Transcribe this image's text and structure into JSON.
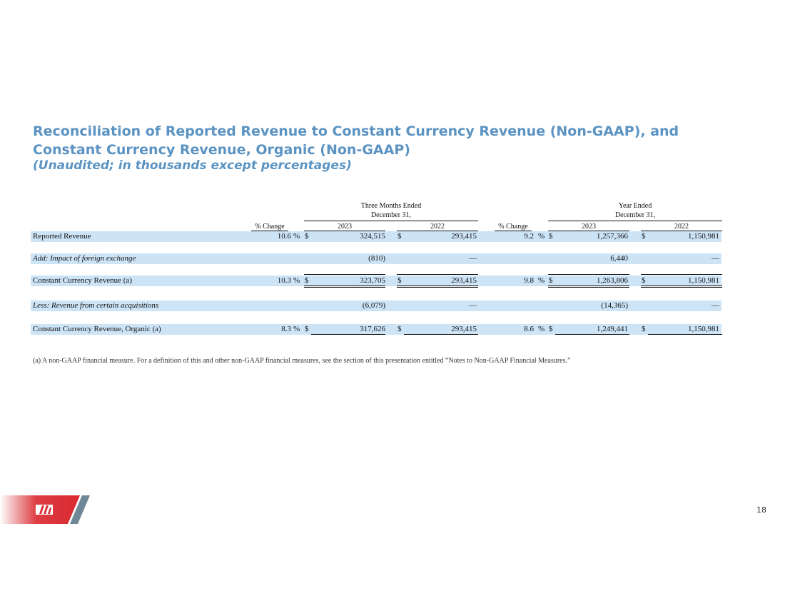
{
  "title": "Reconciliation of Reported Revenue to Constant Currency Revenue (Non-GAAP), and Constant Currency Revenue, Organic (Non-GAAP)",
  "subtitle": "(Unaudited; in thousands except percentages)",
  "headers": {
    "three_months_line1": "Three Months Ended",
    "three_months_line2": "December 31,",
    "year_line1": "Year Ended",
    "year_line2": "December 31,",
    "pct_change": "% Change",
    "y2023": "2023",
    "y2022": "2022"
  },
  "rows": [
    {
      "label": "Reported Revenue",
      "q_pct": "10.6",
      "q_pct_sym": "%",
      "q_dollar1": "$",
      "q_2023": "324,515",
      "q_dollar2": "$",
      "q_2022": "293,415",
      "y_pct": "9.2",
      "y_pct_sym": "%",
      "y_dollar1": "$",
      "y_2023": "1,257,366",
      "y_dollar2": "$",
      "y_2022": "1,150,981"
    },
    {
      "label": "Add: Impact of foreign exchange",
      "q_pct": "",
      "q_pct_sym": "",
      "q_dollar1": "",
      "q_2023": "(810)",
      "q_dollar2": "",
      "q_2022": "—",
      "y_pct": "",
      "y_pct_sym": "",
      "y_dollar1": "",
      "y_2023": "6,440",
      "y_dollar2": "",
      "y_2022": "—"
    },
    {
      "label": "Constant Currency Revenue (a)",
      "q_pct": "10.3",
      "q_pct_sym": "%",
      "q_dollar1": "$",
      "q_2023": "323,705",
      "q_dollar2": "$",
      "q_2022": "293,415",
      "y_pct": "9.8",
      "y_pct_sym": "%",
      "y_dollar1": "$",
      "y_2023": "1,263,806",
      "y_dollar2": "$",
      "y_2022": "1,150,981"
    },
    {
      "label": "Less: Revenue from certain acquisitions",
      "q_pct": "",
      "q_pct_sym": "",
      "q_dollar1": "",
      "q_2023": "(6,079)",
      "q_dollar2": "",
      "q_2022": "—",
      "y_pct": "",
      "y_pct_sym": "",
      "y_dollar1": "",
      "y_2023": "(14,365)",
      "y_dollar2": "",
      "y_2022": "—"
    },
    {
      "label": "Constant Currency Revenue, Organic (a)",
      "q_pct": "8.3",
      "q_pct_sym": "%",
      "q_dollar1": "$",
      "q_2023": "317,626",
      "q_dollar2": "$",
      "q_2022": "293,415",
      "y_pct": "8.6",
      "y_pct_sym": "%",
      "y_dollar1": "$",
      "y_2023": "1,249,441",
      "y_dollar2": "$",
      "y_2022": "1,150,981"
    }
  ],
  "footnote": "(a) A non-GAAP financial measure. For a definition of this and other non-GAAP financial measures, see the section of this presentation entitled “Notes to Non-GAAP Financial Measures.”",
  "page_number": "18",
  "colors": {
    "title": "#5b93c2",
    "row_shade": "#cde4f7",
    "logo_red": "#d9282f",
    "logo_gray": "#6f8796"
  }
}
